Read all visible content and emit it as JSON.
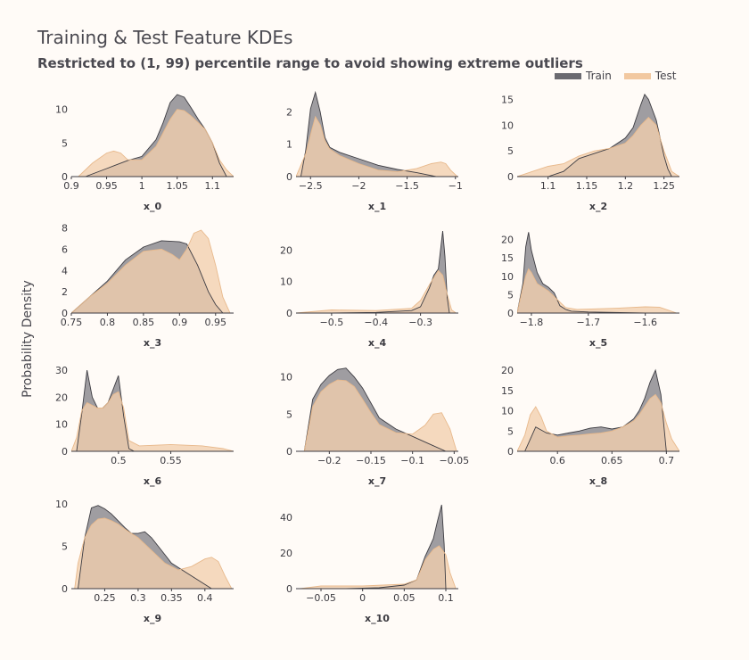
{
  "figure": {
    "title": "Training & Test Feature KDEs",
    "subtitle": "Restricted to (1, 99) percentile range to avoid showing extreme outliers",
    "ylabel": "Probability Density",
    "legend": [
      {
        "name": "Train",
        "color": "#6b6a70"
      },
      {
        "name": "Test",
        "color": "#f2c8a0"
      }
    ],
    "colors": {
      "train_fill": "#7a7880",
      "train_line": "#3d3c42",
      "test_fill": "#f2cfae",
      "test_line": "#e8b98c",
      "overlap": "#c4aa96"
    }
  },
  "chart_data": [
    {
      "type": "area",
      "xlabel": "x_0",
      "xlim": [
        0.9,
        1.13
      ],
      "ylim": [
        0,
        13
      ],
      "xticks": [
        0.9,
        0.95,
        1,
        1.05,
        1.1
      ],
      "xtick_labels": [
        "0.9",
        "0.95",
        "1",
        "1.05",
        "1.1"
      ],
      "yticks": [
        0,
        5,
        10
      ],
      "ytick_labels": [
        "0",
        "5",
        "10"
      ],
      "series": [
        {
          "name": "Train",
          "x": [
            0.92,
            0.95,
            0.98,
            1.0,
            1.02,
            1.03,
            1.04,
            1.05,
            1.06,
            1.07,
            1.08,
            1.09,
            1.1,
            1.11,
            1.12
          ],
          "y": [
            0,
            1.2,
            2.4,
            3,
            5.5,
            8,
            11,
            12.2,
            11.8,
            10.2,
            8.5,
            7,
            5,
            2,
            0
          ]
        },
        {
          "name": "Test",
          "x": [
            0.91,
            0.93,
            0.95,
            0.96,
            0.97,
            0.98,
            1.0,
            1.02,
            1.03,
            1.04,
            1.05,
            1.06,
            1.07,
            1.08,
            1.09,
            1.1,
            1.11,
            1.12,
            1.13
          ],
          "y": [
            0,
            2,
            3.5,
            3.8,
            3.5,
            2.5,
            2.5,
            4.5,
            6.5,
            8.5,
            10,
            9.8,
            9,
            8,
            7,
            5,
            2.5,
            1,
            0
          ]
        }
      ]
    },
    {
      "type": "area",
      "xlabel": "x_1",
      "xlim": [
        -2.65,
        -0.97
      ],
      "ylim": [
        0,
        2.7
      ],
      "xticks": [
        -2.5,
        -2,
        -1.5,
        -1
      ],
      "xtick_labels": [
        "−2.5",
        "−2",
        "−1.5",
        "−1"
      ],
      "yticks": [
        0,
        1,
        2
      ],
      "ytick_labels": [
        "0",
        "1",
        "2"
      ],
      "series": [
        {
          "name": "Train",
          "x": [
            -2.6,
            -2.55,
            -2.5,
            -2.45,
            -2.4,
            -2.35,
            -2.3,
            -2.2,
            -2.0,
            -1.8,
            -1.6,
            -1.4,
            -1.2
          ],
          "y": [
            0,
            0.8,
            2.1,
            2.6,
            2.0,
            1.2,
            0.9,
            0.75,
            0.55,
            0.35,
            0.22,
            0.12,
            0
          ]
        },
        {
          "name": "Test",
          "x": [
            -2.65,
            -2.55,
            -2.5,
            -2.45,
            -2.4,
            -2.35,
            -2.3,
            -2.2,
            -2.0,
            -1.8,
            -1.6,
            -1.4,
            -1.25,
            -1.15,
            -1.1,
            -1.05,
            -0.98
          ],
          "y": [
            0,
            0.7,
            1.3,
            1.85,
            1.6,
            1.1,
            0.85,
            0.65,
            0.4,
            0.2,
            0.15,
            0.25,
            0.4,
            0.45,
            0.4,
            0.2,
            0
          ]
        }
      ]
    },
    {
      "type": "area",
      "xlabel": "x_2",
      "xlim": [
        1.06,
        1.27
      ],
      "ylim": [
        0,
        17
      ],
      "xticks": [
        1.1,
        1.15,
        1.2,
        1.25
      ],
      "xtick_labels": [
        "1.1",
        "1.15",
        "1.2",
        "1.25"
      ],
      "yticks": [
        0,
        5,
        10,
        15
      ],
      "ytick_labels": [
        "0",
        "5",
        "10",
        "15"
      ],
      "series": [
        {
          "name": "Train",
          "x": [
            1.1,
            1.12,
            1.14,
            1.16,
            1.18,
            1.2,
            1.21,
            1.22,
            1.225,
            1.23,
            1.24,
            1.25,
            1.255,
            1.26
          ],
          "y": [
            0,
            1,
            3.5,
            4.5,
            5.5,
            7.5,
            9.5,
            14,
            16,
            15,
            11,
            4,
            1.5,
            0
          ]
        },
        {
          "name": "Test",
          "x": [
            1.06,
            1.08,
            1.1,
            1.12,
            1.14,
            1.16,
            1.18,
            1.2,
            1.21,
            1.22,
            1.23,
            1.24,
            1.25,
            1.26,
            1.27
          ],
          "y": [
            0,
            1,
            2,
            2.5,
            4,
            5,
            5.5,
            6.5,
            8,
            10,
            11.5,
            10,
            5,
            1,
            0
          ]
        }
      ]
    },
    {
      "type": "area",
      "xlabel": "x_3",
      "xlim": [
        0.75,
        0.975
      ],
      "ylim": [
        0,
        8.3
      ],
      "xticks": [
        0.75,
        0.8,
        0.85,
        0.9,
        0.95
      ],
      "xtick_labels": [
        "0.75",
        "0.8",
        "0.85",
        "0.9",
        "0.95"
      ],
      "yticks": [
        0,
        2,
        4,
        6,
        8
      ],
      "ytick_labels": [
        "0",
        "2",
        "4",
        "6",
        "8"
      ],
      "series": [
        {
          "name": "Train",
          "x": [
            0.75,
            0.775,
            0.8,
            0.825,
            0.85,
            0.875,
            0.9,
            0.91,
            0.925,
            0.94,
            0.95,
            0.96
          ],
          "y": [
            0,
            1.5,
            3,
            5,
            6.2,
            6.8,
            6.7,
            6.5,
            4.5,
            2,
            0.8,
            0
          ]
        },
        {
          "name": "Test",
          "x": [
            0.75,
            0.775,
            0.8,
            0.825,
            0.85,
            0.875,
            0.89,
            0.9,
            0.91,
            0.92,
            0.93,
            0.94,
            0.95,
            0.96,
            0.97
          ],
          "y": [
            0,
            1.5,
            2.8,
            4.5,
            5.8,
            6,
            5.5,
            5,
            6,
            7.5,
            7.8,
            7,
            4.5,
            1.5,
            0
          ]
        }
      ]
    },
    {
      "type": "area",
      "xlabel": "x_4",
      "xlim": [
        -0.58,
        -0.215
      ],
      "ylim": [
        0,
        28
      ],
      "xticks": [
        -0.5,
        -0.4,
        -0.3
      ],
      "xtick_labels": [
        "−0.5",
        "−0.4",
        "−0.3"
      ],
      "yticks": [
        0,
        10,
        20
      ],
      "ytick_labels": [
        "0",
        "10",
        "20"
      ],
      "series": [
        {
          "name": "Train",
          "x": [
            -0.5,
            -0.4,
            -0.32,
            -0.3,
            -0.28,
            -0.27,
            -0.26,
            -0.25,
            -0.245,
            -0.24,
            -0.235
          ],
          "y": [
            0,
            0.2,
            0.8,
            2,
            8,
            12,
            14,
            26,
            18,
            5,
            0
          ]
        },
        {
          "name": "Test",
          "x": [
            -0.58,
            -0.5,
            -0.4,
            -0.32,
            -0.3,
            -0.28,
            -0.26,
            -0.25,
            -0.24,
            -0.23,
            -0.22
          ],
          "y": [
            0,
            1,
            0.8,
            1.5,
            4,
            9,
            13.5,
            12,
            6,
            1,
            0
          ]
        }
      ]
    },
    {
      "type": "area",
      "xlabel": "x_5",
      "xlim": [
        -1.825,
        -1.54
      ],
      "ylim": [
        0,
        24
      ],
      "xticks": [
        -1.8,
        -1.7,
        -1.6
      ],
      "xtick_labels": [
        "−1.8",
        "−1.7",
        "−1.6"
      ],
      "yticks": [
        0,
        5,
        10,
        15,
        20
      ],
      "ytick_labels": [
        "0",
        "5",
        "10",
        "15",
        "20"
      ],
      "series": [
        {
          "name": "Train",
          "x": [
            -1.825,
            -1.815,
            -1.81,
            -1.805,
            -1.8,
            -1.79,
            -1.78,
            -1.77,
            -1.76,
            -1.75,
            -1.74,
            -1.73,
            -1.7,
            -1.6
          ],
          "y": [
            0,
            8,
            18,
            22,
            17,
            11,
            8,
            7,
            5.5,
            2,
            1,
            0.5,
            0.3,
            0
          ]
        },
        {
          "name": "Test",
          "x": [
            -1.825,
            -1.815,
            -1.81,
            -1.805,
            -1.8,
            -1.79,
            -1.78,
            -1.77,
            -1.76,
            -1.74,
            -1.72,
            -1.65,
            -1.6,
            -1.575,
            -1.56,
            -1.545
          ],
          "y": [
            0,
            7,
            10,
            12,
            11,
            8,
            7,
            6,
            4.5,
            1.5,
            1,
            1.3,
            1.7,
            1.6,
            0.8,
            0
          ]
        }
      ]
    },
    {
      "type": "area",
      "xlabel": "x_6",
      "xlim": [
        0.455,
        0.61
      ],
      "ylim": [
        0,
        33
      ],
      "xticks": [
        0.5,
        0.55
      ],
      "xtick_labels": [
        "0.5",
        "0.55"
      ],
      "yticks": [
        0,
        10,
        20,
        30
      ],
      "ytick_labels": [
        "0",
        "10",
        "20",
        "30"
      ],
      "series": [
        {
          "name": "Train",
          "x": [
            0.46,
            0.465,
            0.47,
            0.475,
            0.48,
            0.485,
            0.49,
            0.495,
            0.5,
            0.505,
            0.51,
            0.515
          ],
          "y": [
            0,
            14,
            30,
            20,
            16,
            16,
            18,
            23,
            28,
            13,
            1,
            0
          ]
        },
        {
          "name": "Test",
          "x": [
            0.455,
            0.46,
            0.465,
            0.47,
            0.475,
            0.48,
            0.485,
            0.49,
            0.495,
            0.5,
            0.505,
            0.51,
            0.52,
            0.55,
            0.58,
            0.6,
            0.61
          ],
          "y": [
            0,
            5,
            15,
            18,
            17,
            16,
            16,
            18,
            21,
            22,
            16,
            4,
            2,
            2.5,
            2,
            1,
            0
          ]
        }
      ]
    },
    {
      "type": "area",
      "xlabel": "x_7",
      "xlim": [
        -0.24,
        -0.045
      ],
      "ylim": [
        0,
        12
      ],
      "xticks": [
        -0.2,
        -0.15,
        -0.1,
        -0.05
      ],
      "xtick_labels": [
        "−0.2",
        "−0.15",
        "−0.1",
        "−0.05"
      ],
      "yticks": [
        0,
        5,
        10
      ],
      "ytick_labels": [
        "0",
        "5",
        "10"
      ],
      "series": [
        {
          "name": "Train",
          "x": [
            -0.23,
            -0.22,
            -0.21,
            -0.2,
            -0.19,
            -0.18,
            -0.17,
            -0.16,
            -0.15,
            -0.14,
            -0.12,
            -0.1,
            -0.08,
            -0.06
          ],
          "y": [
            0,
            7,
            9,
            10.2,
            11,
            11.2,
            10,
            8.5,
            6.5,
            4.5,
            3,
            2,
            1,
            0
          ]
        },
        {
          "name": "Test",
          "x": [
            -0.23,
            -0.22,
            -0.21,
            -0.2,
            -0.19,
            -0.18,
            -0.17,
            -0.16,
            -0.15,
            -0.14,
            -0.12,
            -0.1,
            -0.085,
            -0.075,
            -0.065,
            -0.055,
            -0.047
          ],
          "y": [
            0,
            6,
            8,
            9,
            9.6,
            9.5,
            8.7,
            7,
            5.2,
            3.6,
            2.5,
            2.3,
            3.5,
            5,
            5.2,
            3,
            0
          ]
        }
      ]
    },
    {
      "type": "area",
      "xlabel": "x_8",
      "xlim": [
        0.563,
        0.712
      ],
      "ylim": [
        0,
        22
      ],
      "xticks": [
        0.6,
        0.65,
        0.7
      ],
      "xtick_labels": [
        "0.6",
        "0.65",
        "0.7"
      ],
      "yticks": [
        0,
        5,
        10,
        15,
        20
      ],
      "ytick_labels": [
        "0",
        "5",
        "10",
        "15",
        "20"
      ],
      "series": [
        {
          "name": "Train",
          "x": [
            0.57,
            0.575,
            0.58,
            0.59,
            0.6,
            0.61,
            0.62,
            0.63,
            0.64,
            0.65,
            0.66,
            0.67,
            0.675,
            0.68,
            0.685,
            0.69,
            0.695,
            0.7
          ],
          "y": [
            0,
            3,
            6,
            4.5,
            4,
            4.5,
            5,
            5.7,
            6,
            5.5,
            6,
            8,
            10,
            13,
            17,
            20,
            14,
            0
          ]
        },
        {
          "name": "Test",
          "x": [
            0.563,
            0.57,
            0.575,
            0.58,
            0.585,
            0.59,
            0.6,
            0.61,
            0.62,
            0.63,
            0.64,
            0.65,
            0.66,
            0.67,
            0.675,
            0.68,
            0.685,
            0.69,
            0.695,
            0.7,
            0.705,
            0.712
          ],
          "y": [
            0,
            4,
            9,
            11,
            8.5,
            5,
            3.5,
            3.8,
            4,
            4.3,
            4.5,
            5,
            6,
            7.5,
            9,
            11,
            13,
            14,
            12,
            7,
            3,
            0
          ]
        }
      ]
    },
    {
      "type": "area",
      "xlabel": "x_9",
      "xlim": [
        0.2,
        0.443
      ],
      "ylim": [
        0,
        10.5
      ],
      "xticks": [
        0.25,
        0.3,
        0.35,
        0.4
      ],
      "xtick_labels": [
        "0.25",
        "0.3",
        "0.35",
        "0.4"
      ],
      "yticks": [
        0,
        5,
        10
      ],
      "ytick_labels": [
        "0",
        "5",
        "10"
      ],
      "series": [
        {
          "name": "Train",
          "x": [
            0.21,
            0.22,
            0.23,
            0.24,
            0.25,
            0.26,
            0.27,
            0.28,
            0.29,
            0.3,
            0.31,
            0.32,
            0.33,
            0.34,
            0.35,
            0.37,
            0.39,
            0.41
          ],
          "y": [
            0,
            6,
            9.5,
            9.8,
            9.4,
            8.8,
            8,
            7.2,
            6.5,
            6.5,
            6.7,
            6,
            5,
            4,
            3,
            2,
            1,
            0
          ]
        },
        {
          "name": "Test",
          "x": [
            0.205,
            0.21,
            0.22,
            0.23,
            0.24,
            0.25,
            0.26,
            0.27,
            0.28,
            0.29,
            0.3,
            0.32,
            0.34,
            0.36,
            0.38,
            0.4,
            0.41,
            0.42,
            0.43,
            0.44
          ],
          "y": [
            0,
            3,
            6,
            7.5,
            8.2,
            8.3,
            8,
            7.6,
            7,
            6.5,
            6,
            4.5,
            3,
            2.2,
            2.6,
            3.5,
            3.7,
            3.2,
            1.5,
            0
          ]
        }
      ]
    },
    {
      "type": "area",
      "xlabel": "x_10",
      "xlim": [
        -0.08,
        0.115
      ],
      "ylim": [
        0,
        50
      ],
      "xticks": [
        -0.05,
        0,
        0.05,
        0.1
      ],
      "xtick_labels": [
        "−0.05",
        "0",
        "0.05",
        "0.1"
      ],
      "yticks": [
        0,
        20,
        40
      ],
      "ytick_labels": [
        "0",
        "20",
        "40"
      ],
      "series": [
        {
          "name": "Train",
          "x": [
            -0.02,
            0.02,
            0.05,
            0.065,
            0.075,
            0.085,
            0.09,
            0.095,
            0.098,
            0.1
          ],
          "y": [
            0,
            0.5,
            2,
            5,
            18,
            28,
            38,
            47,
            25,
            0
          ]
        },
        {
          "name": "Test",
          "x": [
            -0.075,
            -0.05,
            0,
            0.05,
            0.065,
            0.075,
            0.085,
            0.092,
            0.1,
            0.105,
            0.112
          ],
          "y": [
            0,
            1.5,
            1.5,
            2.5,
            5,
            16,
            22,
            24,
            19,
            9,
            0
          ]
        }
      ]
    }
  ]
}
